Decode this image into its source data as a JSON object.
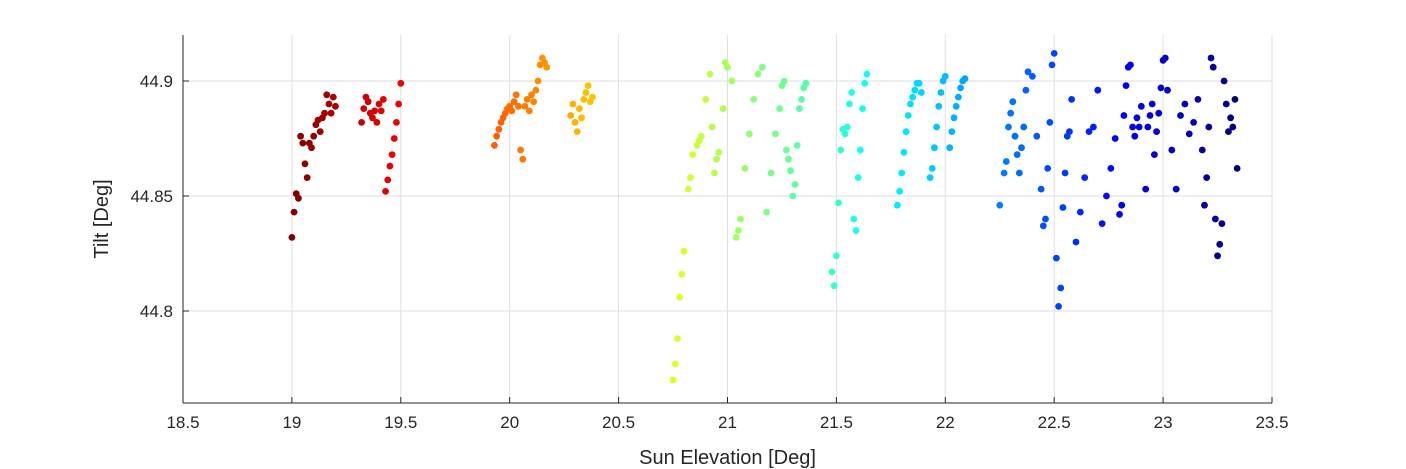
{
  "chart_data": {
    "type": "scatter",
    "title": "",
    "xlabel": "Sun Elevation [Deg]",
    "ylabel": "Tilt [Deg]",
    "xlim": [
      18.5,
      23.5
    ],
    "ylim": [
      44.76,
      44.92
    ],
    "x_ticks": [
      18.5,
      19,
      19.5,
      20,
      20.5,
      21,
      21.5,
      22,
      22.5,
      23,
      23.5
    ],
    "x_tick_labels": [
      "18.5",
      "19",
      "19.5",
      "20",
      "20.5",
      "21",
      "21.5",
      "22",
      "22.5",
      "23",
      "23.5"
    ],
    "y_ticks": [
      44.8,
      44.85,
      44.9
    ],
    "y_tick_labels": [
      "44.8",
      "44.85",
      "44.9"
    ],
    "grid": true,
    "colormap": "jet",
    "marker_color_by": "x",
    "series": [
      {
        "x": [
          19.0,
          19.01,
          19.02,
          19.03,
          19.04,
          19.05,
          19.06,
          19.07,
          19.08,
          19.09,
          19.1,
          19.11,
          19.12,
          19.13,
          19.14,
          19.15,
          19.16,
          19.17,
          19.18,
          19.19,
          19.2,
          19.32,
          19.33,
          19.34,
          19.35,
          19.36,
          19.37,
          19.38,
          19.39,
          19.4,
          19.41,
          19.42,
          19.43,
          19.44,
          19.45,
          19.46,
          19.47,
          19.48,
          19.49,
          19.5
        ],
        "y": [
          44.832,
          44.843,
          44.851,
          44.849,
          44.876,
          44.873,
          44.864,
          44.858,
          44.873,
          44.871,
          44.876,
          44.881,
          44.883,
          44.878,
          44.884,
          44.886,
          44.894,
          44.89,
          44.886,
          44.893,
          44.889,
          44.882,
          44.888,
          44.893,
          44.891,
          44.886,
          44.884,
          44.887,
          44.882,
          44.89,
          44.887,
          44.892,
          44.852,
          44.857,
          44.863,
          44.868,
          44.875,
          44.882,
          44.89,
          44.899
        ]
      },
      {
        "x": [
          19.93,
          19.94,
          19.95,
          19.96,
          19.97,
          19.98,
          19.99,
          20.0,
          20.01,
          20.02,
          20.03,
          20.04,
          20.05,
          20.06,
          20.07,
          20.08,
          20.09,
          20.1,
          20.11,
          20.12,
          20.13,
          20.14,
          20.15,
          20.16,
          20.17,
          20.28,
          20.29,
          20.3,
          20.31,
          20.32,
          20.33,
          20.34,
          20.35,
          20.36,
          20.37,
          20.38
        ],
        "y": [
          44.872,
          44.876,
          44.879,
          44.882,
          44.884,
          44.886,
          44.888,
          44.889,
          44.887,
          44.891,
          44.894,
          44.889,
          44.87,
          44.866,
          44.889,
          44.892,
          44.887,
          44.894,
          44.891,
          44.896,
          44.9,
          44.907,
          44.91,
          44.908,
          44.906,
          44.885,
          44.89,
          44.882,
          44.878,
          44.888,
          44.884,
          44.892,
          44.895,
          44.898,
          44.891,
          44.893
        ]
      },
      {
        "x": [
          20.75,
          20.76,
          20.77,
          20.78,
          20.79,
          20.8,
          20.82,
          20.83,
          20.84,
          20.86,
          20.87,
          20.88,
          20.9,
          20.92,
          20.93,
          20.94,
          20.95,
          20.96,
          20.98,
          20.99,
          21.0,
          21.02,
          21.04,
          21.05,
          21.06,
          21.08,
          21.1,
          21.12,
          21.14,
          21.16
        ],
        "y": [
          44.77,
          44.777,
          44.788,
          44.806,
          44.816,
          44.826,
          44.853,
          44.858,
          44.868,
          44.872,
          44.874,
          44.876,
          44.892,
          44.903,
          44.88,
          44.86,
          44.866,
          44.869,
          44.888,
          44.908,
          44.906,
          44.9,
          44.832,
          44.835,
          44.84,
          44.862,
          44.877,
          44.892,
          44.903,
          44.906
        ]
      },
      {
        "x": [
          21.18,
          21.2,
          21.22,
          21.24,
          21.25,
          21.26,
          21.27,
          21.28,
          21.29,
          21.3,
          21.31,
          21.32,
          21.33,
          21.34,
          21.35,
          21.36,
          21.48,
          21.49,
          21.5,
          21.51,
          21.52,
          21.53,
          21.54,
          21.55,
          21.56,
          21.57,
          21.58,
          21.59,
          21.6,
          21.61,
          21.62,
          21.63,
          21.64
        ],
        "y": [
          44.843,
          44.86,
          44.877,
          44.888,
          44.898,
          44.9,
          44.87,
          44.866,
          44.861,
          44.85,
          44.855,
          44.872,
          44.888,
          44.892,
          44.897,
          44.899,
          44.817,
          44.811,
          44.824,
          44.847,
          44.87,
          44.879,
          44.877,
          44.88,
          44.89,
          44.895,
          44.84,
          44.835,
          44.858,
          44.87,
          44.888,
          44.899,
          44.903
        ]
      },
      {
        "x": [
          21.78,
          21.79,
          21.8,
          21.81,
          21.82,
          21.83,
          21.84,
          21.85,
          21.86,
          21.87,
          21.88,
          21.89,
          21.93,
          21.94,
          21.95,
          21.96,
          21.97,
          21.98,
          21.99,
          22.0,
          22.02,
          22.03,
          22.04,
          22.05,
          22.06,
          22.07,
          22.08,
          22.09
        ],
        "y": [
          44.846,
          44.852,
          44.86,
          44.869,
          44.878,
          44.885,
          44.89,
          44.893,
          44.896,
          44.899,
          44.899,
          44.895,
          44.858,
          44.862,
          44.871,
          44.88,
          44.889,
          44.895,
          44.9,
          44.902,
          44.871,
          44.878,
          44.884,
          44.889,
          44.893,
          44.897,
          44.9,
          44.901
        ]
      },
      {
        "x": [
          22.25,
          22.27,
          22.28,
          22.29,
          22.3,
          22.31,
          22.32,
          22.33,
          22.34,
          22.35,
          22.36,
          22.37,
          22.38,
          22.4,
          22.42,
          22.44,
          22.45,
          22.46,
          22.47,
          22.48,
          22.49,
          22.5,
          22.51,
          22.52,
          22.53,
          22.54,
          22.55,
          22.56,
          22.57,
          22.58,
          22.6,
          22.62,
          22.64,
          22.66,
          22.68,
          22.7
        ],
        "y": [
          44.846,
          44.86,
          44.865,
          44.88,
          44.886,
          44.891,
          44.876,
          44.868,
          44.86,
          44.871,
          44.88,
          44.896,
          44.904,
          44.902,
          44.876,
          44.853,
          44.837,
          44.84,
          44.862,
          44.882,
          44.907,
          44.912,
          44.823,
          44.802,
          44.81,
          44.845,
          44.86,
          44.876,
          44.878,
          44.892,
          44.83,
          44.843,
          44.858,
          44.878,
          44.88,
          44.896
        ]
      },
      {
        "x": [
          22.72,
          22.74,
          22.76,
          22.78,
          22.8,
          22.81,
          22.82,
          22.83,
          22.84,
          22.85,
          22.86,
          22.87,
          22.88,
          22.89,
          22.9,
          22.92,
          22.93,
          22.94,
          22.95,
          22.96,
          22.97,
          22.98,
          22.99,
          23.0,
          23.01,
          23.02,
          23.04,
          23.06,
          23.08,
          23.1,
          23.12,
          23.14,
          23.16,
          23.18
        ],
        "y": [
          44.838,
          44.85,
          44.862,
          44.875,
          44.842,
          44.846,
          44.885,
          44.898,
          44.906,
          44.907,
          44.88,
          44.876,
          44.884,
          44.88,
          44.889,
          44.853,
          44.88,
          44.885,
          44.89,
          44.868,
          44.878,
          44.886,
          44.897,
          44.909,
          44.91,
          44.896,
          44.87,
          44.853,
          44.885,
          44.89,
          44.877,
          44.882,
          44.892,
          44.87
        ]
      },
      {
        "x": [
          23.19,
          23.2,
          23.21,
          23.22,
          23.23,
          23.24,
          23.25,
          23.26,
          23.27,
          23.28,
          23.29,
          23.3,
          23.31,
          23.32,
          23.33,
          23.34
        ],
        "y": [
          44.846,
          44.858,
          44.88,
          44.91,
          44.906,
          44.84,
          44.824,
          44.829,
          44.838,
          44.9,
          44.89,
          44.878,
          44.884,
          44.88,
          44.892,
          44.862
        ]
      }
    ]
  }
}
